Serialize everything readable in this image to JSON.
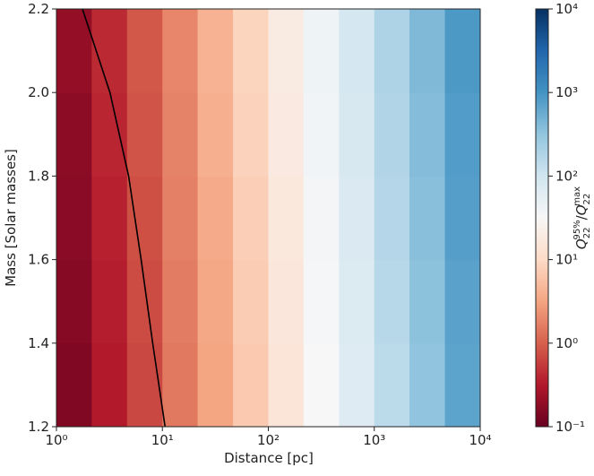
{
  "chart_data": {
    "type": "heatmap",
    "xlabel": "Distance [pc]",
    "ylabel": "Mass [Solar masses]",
    "xscale": "log",
    "xlim": [
      1,
      10000
    ],
    "xticks": [
      {
        "value": 1,
        "label": "10⁰"
      },
      {
        "value": 10,
        "label": "10¹"
      },
      {
        "value": 100,
        "label": "10²"
      },
      {
        "value": 1000,
        "label": "10³"
      },
      {
        "value": 10000,
        "label": "10⁴"
      }
    ],
    "ylim": [
      1.2,
      2.2
    ],
    "yticks": [
      1.2,
      1.4,
      1.6,
      1.8,
      {
        "value": 2,
        "label": "2.0"
      },
      2.2
    ],
    "x_edges": [
      1,
      2.15,
      4.64,
      10,
      21.5,
      46.4,
      100,
      215,
      464,
      1000,
      2150,
      4640,
      10000
    ],
    "y_edges": [
      1.2,
      1.4,
      1.6,
      1.8,
      2.0,
      2.2
    ],
    "values": [
      [
        0.15,
        0.32,
        0.68,
        1.5,
        3.2,
        6.8,
        15,
        32,
        68,
        150,
        320,
        680
      ],
      [
        0.16,
        0.34,
        0.72,
        1.6,
        3.4,
        7.2,
        16,
        34,
        72,
        160,
        340,
        720
      ],
      [
        0.17,
        0.36,
        0.77,
        1.7,
        3.6,
        7.7,
        17,
        36,
        77,
        170,
        360,
        770
      ],
      [
        0.18,
        0.39,
        0.82,
        1.8,
        3.9,
        8.2,
        18,
        39,
        82,
        180,
        390,
        820
      ],
      [
        0.2,
        0.42,
        0.88,
        1.9,
        4.2,
        8.8,
        19,
        42,
        88,
        190,
        420,
        880
      ]
    ],
    "colormap": "RdBu_r",
    "colorbar_scale": "log",
    "colorbar_lim": [
      0.1,
      10000
    ],
    "colorbar_ticks": [
      {
        "value": 0.1,
        "label": "10⁻¹"
      },
      {
        "value": 1,
        "label": "10⁰"
      },
      {
        "value": 10,
        "label": "10¹"
      },
      {
        "value": 100,
        "label": "10²"
      },
      {
        "value": 1000,
        "label": "10³"
      },
      {
        "value": 10000,
        "label": "10⁴"
      }
    ],
    "colorbar_label": {
      "numerator": {
        "symbol": "Q",
        "sub": "22",
        "sup": "95%"
      },
      "separator": "/",
      "denominator": {
        "symbol": "Q",
        "sub": "22",
        "sup": "max"
      }
    },
    "contour": {
      "color": "#000000",
      "x": [
        1.76,
        3.2,
        4.8,
        6.3,
        8.1,
        10.6
      ],
      "y": [
        2.2,
        2.0,
        1.8,
        1.6,
        1.4,
        1.2
      ]
    }
  }
}
